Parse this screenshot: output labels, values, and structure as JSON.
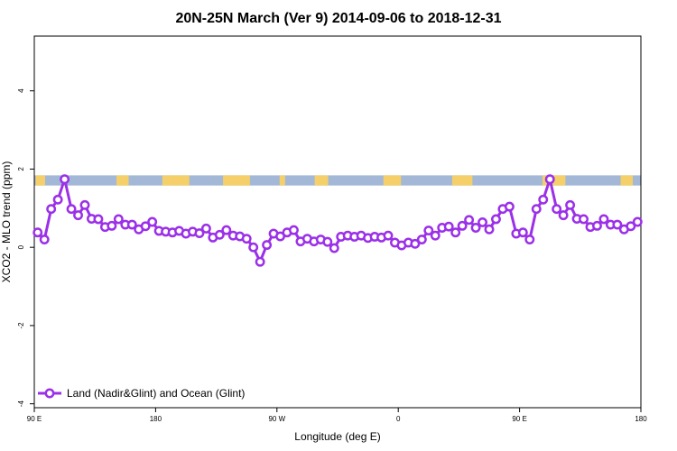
{
  "chart_data": {
    "type": "line",
    "title": "20N-25N March (Ver 9)   2014-09-06 to 2018-12-31",
    "xlabel": "Longitude (deg E)",
    "ylabel": "XCO2 - MLO trend (ppm)",
    "x_tick_labels": [
      "90 E",
      "180",
      "90 W",
      "0",
      "90 E",
      "180"
    ],
    "y_ticks": [
      -4,
      -2,
      0,
      2,
      4
    ],
    "y_tick_labels": [
      "-4",
      "-2",
      "0",
      "2",
      "4"
    ],
    "xlim": [
      90,
      540
    ],
    "ylim": [
      -4.1,
      5.4
    ],
    "grid": false,
    "legend_position": "bottom-left",
    "land_ocean_band": {
      "y_range": [
        1.58,
        1.84
      ],
      "ocean_color": "#a3b8d6",
      "land_color": "#f5d06a"
    },
    "series": [
      {
        "name": "Land (Nadir&Glint) and Ocean (Glint)",
        "color": "#9b30e8",
        "x": [
          92.5,
          97.5,
          102.5,
          107.5,
          112.5,
          117.5,
          122.5,
          127.5,
          132.5,
          137.5,
          142.5,
          147.5,
          152.5,
          157.5,
          162.5,
          167.5,
          172.5,
          177.5,
          182.5,
          187.5,
          192.5,
          197.5,
          202.5,
          207.5,
          212.5,
          217.5,
          222.5,
          227.5,
          232.5,
          237.5,
          242.5,
          247.5,
          252.5,
          257.5,
          262.5,
          267.5,
          272.5,
          277.5,
          282.5,
          287.5,
          292.5,
          297.5,
          302.5,
          307.5,
          312.5,
          317.5,
          322.5,
          327.5,
          332.5,
          337.5,
          342.5,
          347.5,
          352.5,
          357.5,
          362.5,
          367.5,
          372.5,
          377.5,
          382.5,
          387.5,
          392.5,
          397.5,
          402.5,
          407.5,
          412.5,
          417.5,
          422.5,
          427.5,
          432.5,
          437.5,
          442.5,
          447.5,
          452.5,
          457.5,
          462.5,
          467.5,
          472.5,
          477.5,
          482.5,
          487.5,
          492.5,
          497.5,
          502.5,
          507.5,
          512.5,
          517.5,
          522.5,
          527.5,
          532.5,
          537.5
        ],
        "y": [
          0.38,
          0.2,
          0.98,
          1.22,
          1.74,
          0.98,
          0.82,
          1.08,
          0.73,
          0.72,
          0.52,
          0.55,
          0.72,
          0.58,
          0.58,
          0.46,
          0.54,
          0.65,
          0.42,
          0.4,
          0.38,
          0.42,
          0.35,
          0.4,
          0.36,
          0.48,
          0.25,
          0.32,
          0.44,
          0.3,
          0.28,
          0.22,
          0.0,
          -0.37,
          0.06,
          0.35,
          0.28,
          0.38,
          0.44,
          0.15,
          0.22,
          0.15,
          0.2,
          0.14,
          -0.02,
          0.27,
          0.3,
          0.27,
          0.3,
          0.24,
          0.27,
          0.25,
          0.3,
          0.12,
          0.05,
          0.12,
          0.09,
          0.2,
          0.43,
          0.3,
          0.5,
          0.53,
          0.38,
          0.55,
          0.7,
          0.5,
          0.64,
          0.46,
          0.72,
          0.98,
          1.04,
          0.35,
          0.38,
          0.2,
          0.98,
          1.22,
          1.74,
          0.98,
          0.82,
          1.08,
          0.73,
          0.72,
          0.52,
          0.55,
          0.72,
          0.58,
          0.58,
          0.46,
          0.54,
          0.65
        ]
      }
    ]
  }
}
